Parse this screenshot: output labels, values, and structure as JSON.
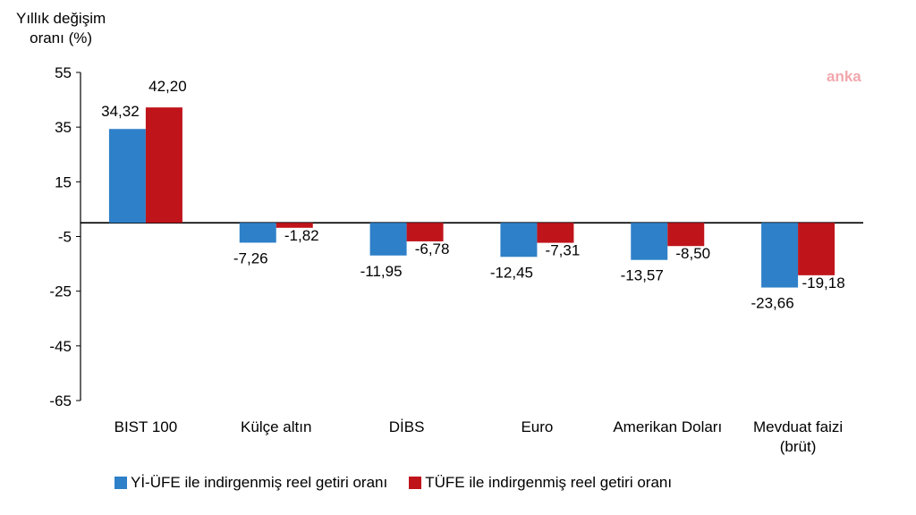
{
  "chart_data": {
    "type": "bar",
    "ylabel": "Yıllık değişim\noranı (%)",
    "ylim": [
      -65,
      55
    ],
    "yticks": [
      55,
      35,
      15,
      -5,
      -25,
      -45,
      -65
    ],
    "categories": [
      "BIST 100",
      "Külçe altın",
      "DİBS",
      "Euro",
      "Amerikan Doları",
      "Mevduat faizi\n(brüt)"
    ],
    "series": [
      {
        "name": "Yİ-ÜFE ile indirgenmiş reel getiri oranı",
        "color": "#2e80c8",
        "values": [
          34.32,
          -7.26,
          -11.95,
          -12.45,
          -13.57,
          -23.66
        ],
        "labels": [
          "34,32",
          "-7,26",
          "-11,95",
          "-12,45",
          "-13,57",
          "-23,66"
        ]
      },
      {
        "name": "TÜFE ile indirgenmiş reel getiri oranı",
        "color": "#c0141b",
        "values": [
          42.2,
          -1.82,
          -6.78,
          -7.31,
          -8.5,
          -19.18
        ],
        "labels": [
          "42,20",
          "-1,82",
          "-6,78",
          "-7,31",
          "-8,50",
          "-19,18"
        ]
      }
    ],
    "grid": false,
    "legend_position": "bottom-left"
  },
  "watermark": "anka"
}
